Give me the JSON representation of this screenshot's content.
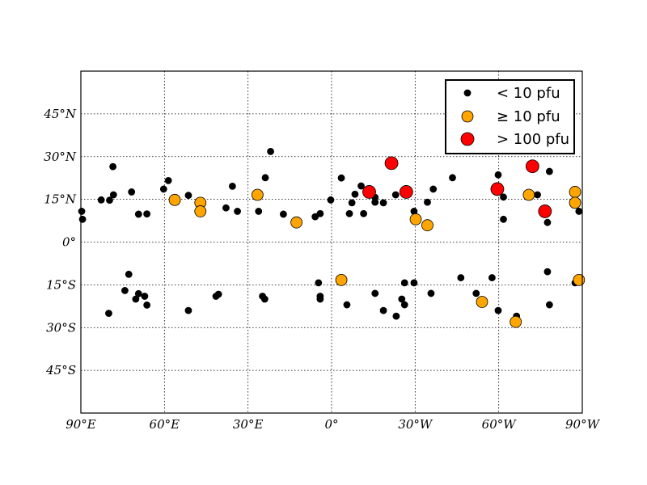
{
  "chart_data": {
    "type": "scatter",
    "title": "",
    "xlabel": "",
    "ylabel": "",
    "xlim": [
      90,
      -90
    ],
    "ylim": [
      -60,
      60
    ],
    "grid": true,
    "legend_placement": "top-right",
    "x_ticks": [
      {
        "value": 90,
        "label": "90°E"
      },
      {
        "value": 60,
        "label": "60°E"
      },
      {
        "value": 30,
        "label": "30°E"
      },
      {
        "value": 0,
        "label": "0°"
      },
      {
        "value": -30,
        "label": "30°W"
      },
      {
        "value": -60,
        "label": "60°W"
      },
      {
        "value": -90,
        "label": "90°W"
      }
    ],
    "y_ticks": [
      {
        "value": 45,
        "label": "45°N"
      },
      {
        "value": 30,
        "label": "30°N"
      },
      {
        "value": 15,
        "label": "15°N"
      },
      {
        "value": 0,
        "label": "0°"
      },
      {
        "value": -15,
        "label": "15°S"
      },
      {
        "value": -30,
        "label": "30°S"
      },
      {
        "value": -45,
        "label": "45°S"
      }
    ],
    "series": [
      {
        "name": "< 10 pfu",
        "color": "#000000",
        "points": [
          [
            89.7,
            10.8
          ],
          [
            89.4,
            8.0
          ],
          [
            82.7,
            14.8
          ],
          [
            79.7,
            14.7
          ],
          [
            78.5,
            26.5
          ],
          [
            78.3,
            16.6
          ],
          [
            72.8,
            -11.3
          ],
          [
            71.8,
            17.6
          ],
          [
            74.2,
            -17.0
          ],
          [
            69.3,
            9.8
          ],
          [
            69.3,
            -18.1
          ],
          [
            70.3,
            -20.0
          ],
          [
            80.0,
            -25.0
          ],
          [
            67.1,
            -19.0
          ],
          [
            66.3,
            9.9
          ],
          [
            66.3,
            -22.1
          ],
          [
            60.3,
            18.6
          ],
          [
            58.6,
            21.6
          ],
          [
            51.4,
            16.4
          ],
          [
            51.4,
            -24.0
          ],
          [
            41.5,
            -19.0
          ],
          [
            40.6,
            -18.3
          ],
          [
            37.9,
            12.0
          ],
          [
            35.6,
            19.6
          ],
          [
            33.8,
            10.8
          ],
          [
            26.2,
            10.8
          ],
          [
            24.8,
            -19.0
          ],
          [
            23.8,
            22.6
          ],
          [
            24.0,
            -20.0
          ],
          [
            21.9,
            31.8
          ],
          [
            17.3,
            9.8
          ],
          [
            5.9,
            8.9
          ],
          [
            4.1,
            10.0
          ],
          [
            4.7,
            -14.3
          ],
          [
            4.1,
            -19.0
          ],
          [
            4.1,
            -20.0
          ],
          [
            0.3,
            14.8
          ],
          [
            -3.5,
            22.5
          ],
          [
            -5.5,
            -22.0
          ],
          [
            -6.4,
            10.0
          ],
          [
            -7.3,
            13.8
          ],
          [
            -8.4,
            16.8
          ],
          [
            -10.6,
            19.7
          ],
          [
            -11.5,
            10.0
          ],
          [
            -15.6,
            15.7
          ],
          [
            -15.6,
            14.0
          ],
          [
            -15.6,
            -18.0
          ],
          [
            -18.6,
            13.8
          ],
          [
            -18.6,
            -24.0
          ],
          [
            -23.0,
            16.6
          ],
          [
            -23.2,
            -26.0
          ],
          [
            -25.2,
            -20.0
          ],
          [
            -26.2,
            -22.0
          ],
          [
            -26.2,
            -14.3
          ],
          [
            -29.6,
            10.8
          ],
          [
            -29.6,
            -14.3
          ],
          [
            -34.4,
            14.0
          ],
          [
            -35.7,
            -18.0
          ],
          [
            -36.5,
            18.6
          ],
          [
            -43.4,
            22.6
          ],
          [
            -46.4,
            -12.5
          ],
          [
            -51.9,
            -18.0
          ],
          [
            -57.6,
            -12.5
          ],
          [
            -59.8,
            -24.0
          ],
          [
            -59.8,
            23.6
          ],
          [
            -61.7,
            15.8
          ],
          [
            -61.7,
            8.0
          ],
          [
            -66.4,
            -26.0
          ],
          [
            -73.9,
            16.6
          ],
          [
            -77.5,
            6.9
          ],
          [
            -77.5,
            -10.4
          ],
          [
            -78.2,
            24.8
          ],
          [
            -78.2,
            -22.0
          ],
          [
            -87.4,
            -14.3
          ],
          [
            -88.8,
            10.8
          ],
          [
            -90.6,
            18.6
          ],
          [
            -90.9,
            -26.0
          ]
        ]
      },
      {
        "name": "≥ 10 pfu",
        "color": "#ffa500",
        "points": [
          [
            56.3,
            14.8
          ],
          [
            47.1,
            13.8
          ],
          [
            47.1,
            10.8
          ],
          [
            26.6,
            16.6
          ],
          [
            12.6,
            6.9
          ],
          [
            -3.5,
            -13.3
          ],
          [
            -30.2,
            8.0
          ],
          [
            -34.4,
            5.9
          ],
          [
            -54.0,
            -21.0
          ],
          [
            -66.1,
            -28.0
          ],
          [
            -70.8,
            16.6
          ],
          [
            -87.4,
            17.6
          ],
          [
            -87.4,
            13.8
          ],
          [
            -88.8,
            -13.3
          ]
        ]
      },
      {
        "name": "> 100 pfu",
        "color": "#ff0000",
        "points": [
          [
            -13.5,
            17.6
          ],
          [
            -21.5,
            27.7
          ],
          [
            -26.8,
            17.6
          ],
          [
            -59.5,
            18.6
          ],
          [
            -72.1,
            26.6
          ],
          [
            -76.6,
            10.8
          ]
        ]
      }
    ]
  }
}
